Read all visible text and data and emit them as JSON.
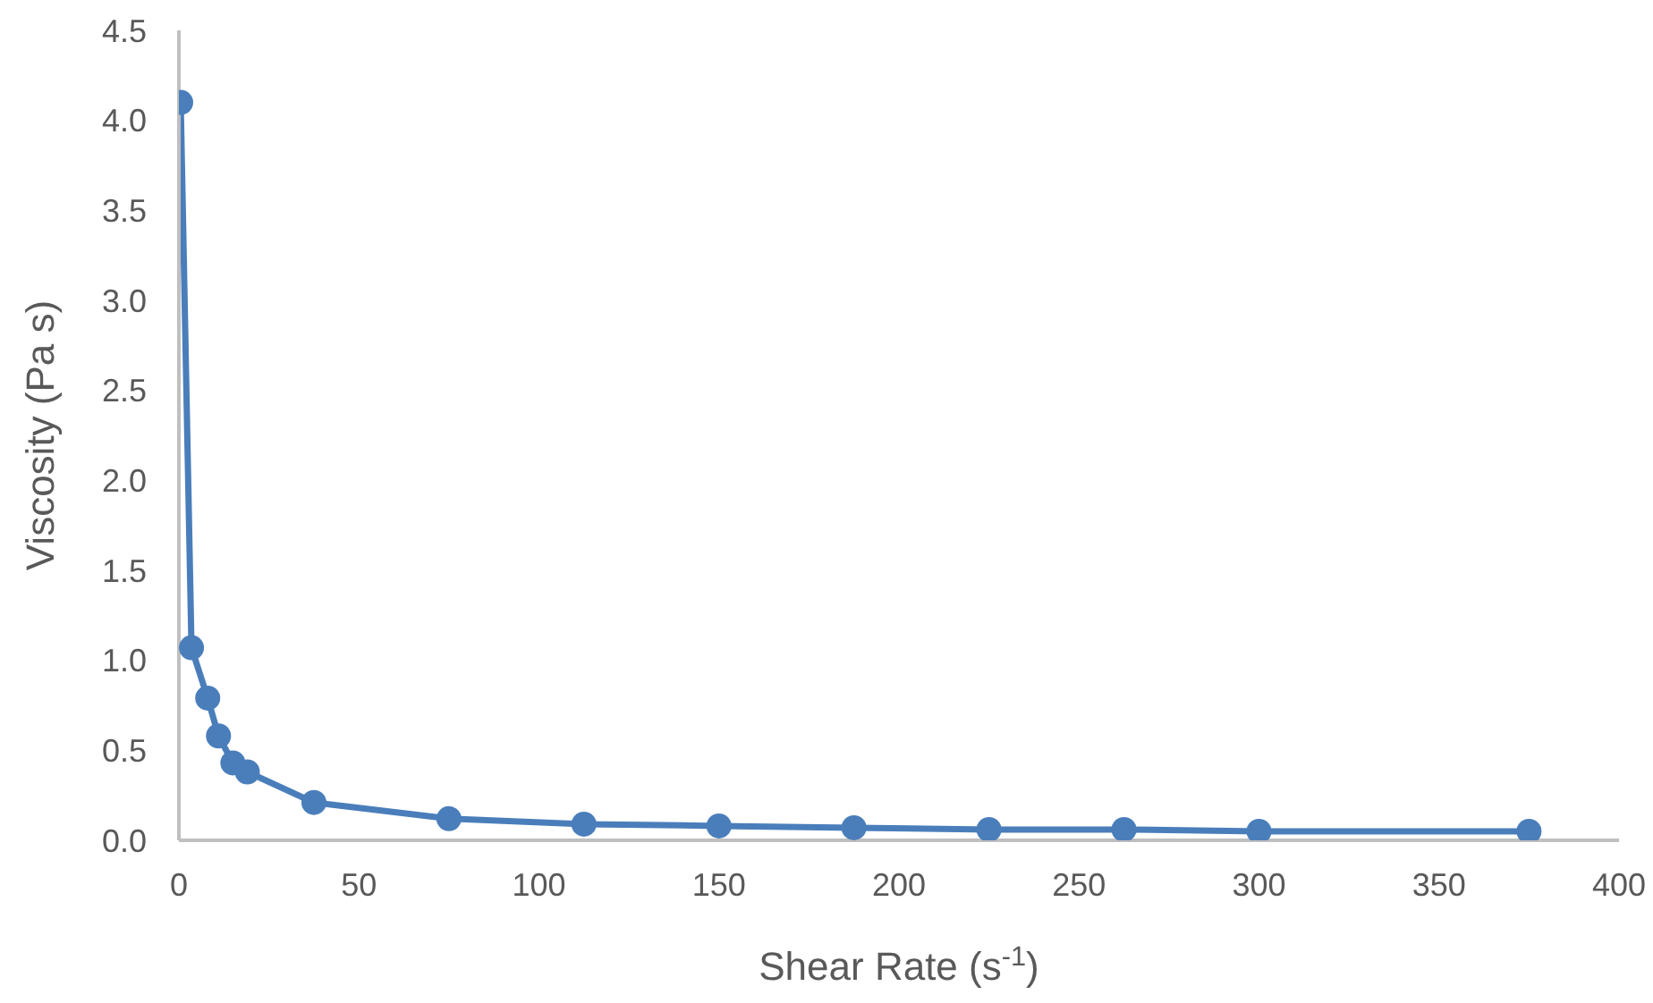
{
  "chart_data": {
    "type": "line",
    "xlabel": "Shear Rate (s$^{-1}$)",
    "ylabel": "Viscosity (Pa s)",
    "x": [
      0.5,
      3.5,
      8,
      11,
      15,
      19,
      37.5,
      75,
      112.5,
      150,
      187.5,
      225,
      262.5,
      300,
      375
    ],
    "series": [
      {
        "color": "#4a7ebb",
        "values": [
          4.1,
          1.07,
          0.79,
          0.58,
          0.43,
          0.38,
          0.21,
          0.12,
          0.09,
          0.08,
          0.07,
          0.06,
          0.06,
          0.05,
          0.05
        ]
      }
    ],
    "xlim": [
      0,
      400
    ],
    "xticks": [
      0,
      50,
      100,
      150,
      200,
      250,
      300,
      350,
      400
    ],
    "ylim": [
      0,
      4.5
    ],
    "yticks": [
      {
        "value": 0,
        "label": "0.0"
      },
      0.5,
      {
        "value": 1,
        "label": "1.0"
      },
      1.5,
      {
        "value": 2,
        "label": "2.0"
      },
      2.5,
      {
        "value": 3,
        "label": "3.0"
      },
      3.5,
      {
        "value": 4,
        "label": "4.0"
      },
      4.5
    ],
    "grid": false,
    "legend": false,
    "marker": "circle",
    "line_style": "solid"
  }
}
